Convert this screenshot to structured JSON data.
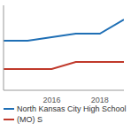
{
  "chart_data": {
    "type": "line",
    "x": [
      2014,
      2015,
      2016,
      2017,
      2018,
      2019
    ],
    "series": [
      {
        "name": "North Kansas City High School",
        "color": "#1f6fb5",
        "values": [
          17,
          17,
          17.5,
          18,
          18,
          20
        ]
      },
      {
        "name": "(MO) S",
        "color": "#c0392b",
        "values": [
          13,
          13,
          13,
          14,
          14,
          14
        ]
      }
    ],
    "xlim": [
      2014,
      2019
    ],
    "xticks": [
      2016,
      2018
    ],
    "ylim": [
      10,
      22
    ],
    "yticks": [],
    "tick_labels": "x",
    "legend": "bottom"
  }
}
